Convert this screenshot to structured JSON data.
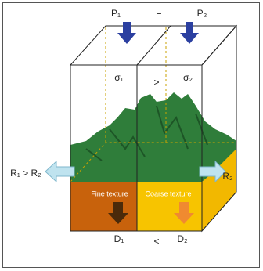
{
  "labels": {
    "p1": "P₁",
    "p_relation": "=",
    "p2": "P₂",
    "sigma1": "σ₁",
    "sigma_relation": ">",
    "sigma2": "σ₂",
    "r_left": "R₁ > R₂",
    "r_right": "R₂",
    "fine": "Fine texture",
    "coarse": "Coarse texture",
    "d1": "D₁",
    "d_relation": "<",
    "d2": "D₂"
  }
}
